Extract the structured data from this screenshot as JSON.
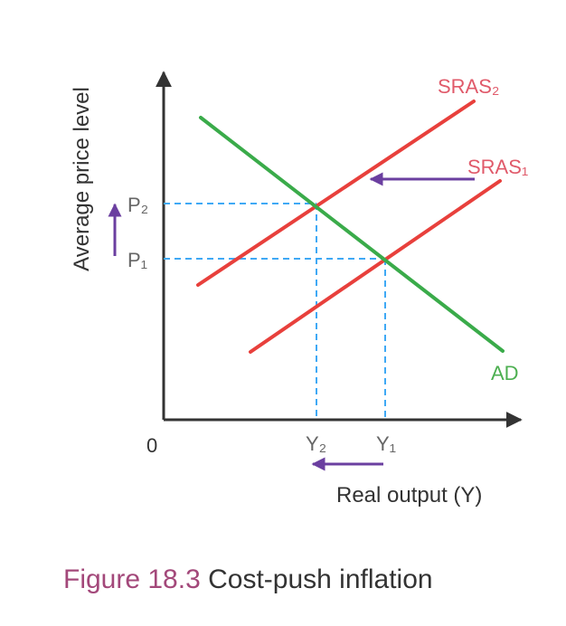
{
  "diagram": {
    "y_axis_label": "Average price level",
    "x_axis_label": "Real output (Y)",
    "origin_label": "0",
    "curves": {
      "sras2": "SRAS₂",
      "sras1": "SRAS₁",
      "ad": "AD"
    },
    "price_levels": {
      "p2": "P₂",
      "p1": "P₁"
    },
    "output_levels": {
      "y2": "Y₂",
      "y1": "Y₁"
    },
    "colors": {
      "axis": "#333333",
      "supply": "#e8403c",
      "demand": "#3aab4a",
      "guide": "#3fa9f5",
      "shift_arrow": "#6b3fa0",
      "supply_label": "#e05a6a",
      "demand_label": "#4caf50",
      "figure_label": "#a3487a"
    }
  },
  "caption": {
    "figure_number": "Figure 18.3",
    "title": "Cost-push inflation"
  }
}
